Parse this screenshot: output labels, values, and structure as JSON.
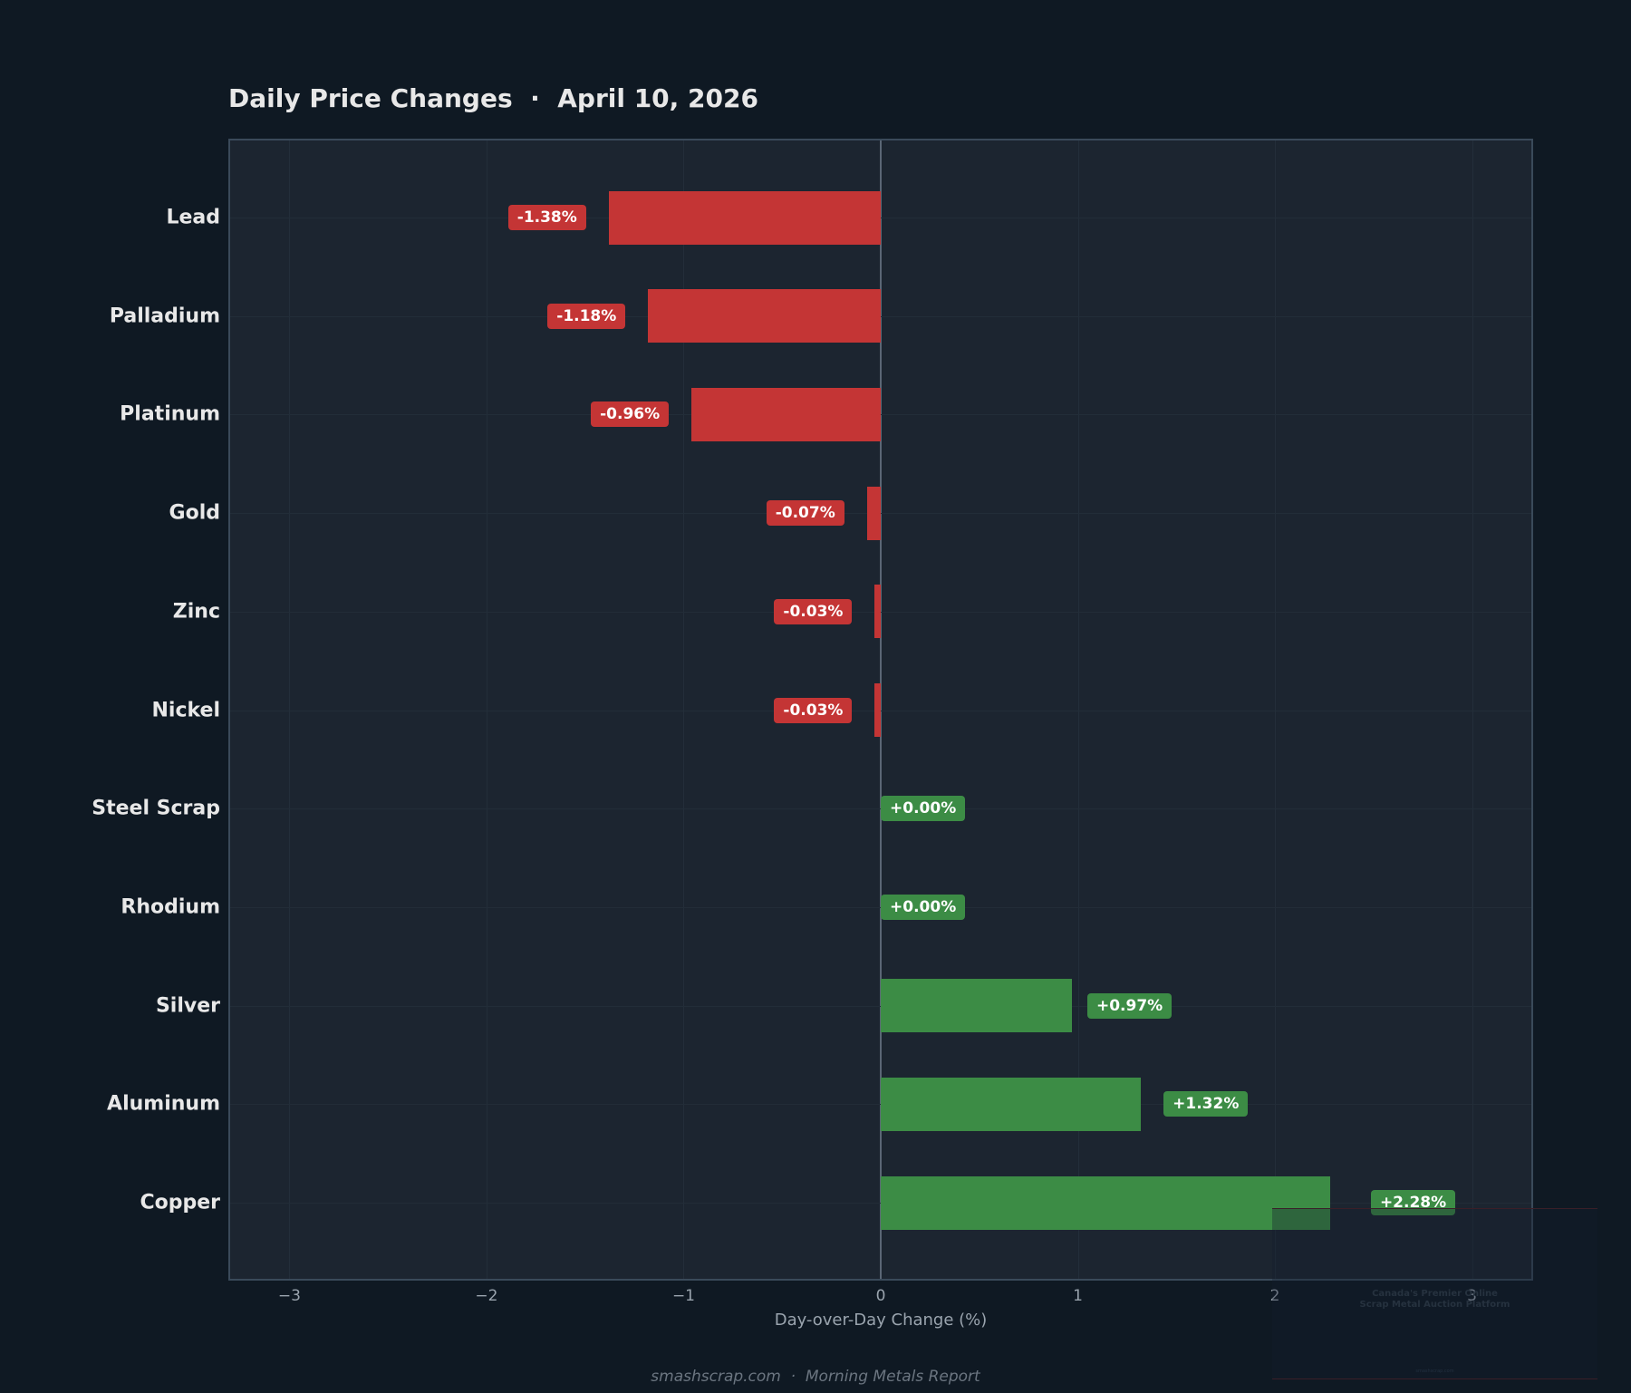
{
  "title": "Daily Price Changes  ·  April 10, 2026",
  "footer": "smashscrap.com  ·  Morning Metals Report",
  "watermark": {
    "line1": "Canada's Premier Online",
    "line2": "Scrap Metal Auction Platform",
    "url": "smashscrap.com"
  },
  "colors": {
    "negative": "#c43535",
    "positive": "#3c8c45",
    "background": "#0f1923",
    "axes_background": "#1c2530"
  },
  "chart_data": {
    "type": "bar",
    "orientation": "horizontal",
    "title": "Daily Price Changes · April 10, 2026",
    "xlabel": "Day-over-Day Change (%)",
    "ylabel": "",
    "xlim": [
      -3.31,
      3.31
    ],
    "xticks": [
      "−3",
      "−2",
      "−1",
      "0",
      "1",
      "2",
      "3"
    ],
    "grid": true,
    "categories": [
      "Lead",
      "Palladium",
      "Platinum",
      "Gold",
      "Zinc",
      "Nickel",
      "Steel Scrap",
      "Rhodium",
      "Silver",
      "Aluminum",
      "Copper"
    ],
    "values": [
      -1.38,
      -1.18,
      -0.96,
      -0.07,
      -0.03,
      -0.03,
      0.0,
      0.0,
      0.97,
      1.32,
      2.28
    ],
    "labels": [
      "-1.38%",
      "-1.18%",
      "-0.96%",
      "-0.07%",
      "-0.03%",
      "-0.03%",
      "+0.00%",
      "+0.00%",
      "+0.97%",
      "+1.32%",
      "+2.28%"
    ]
  }
}
